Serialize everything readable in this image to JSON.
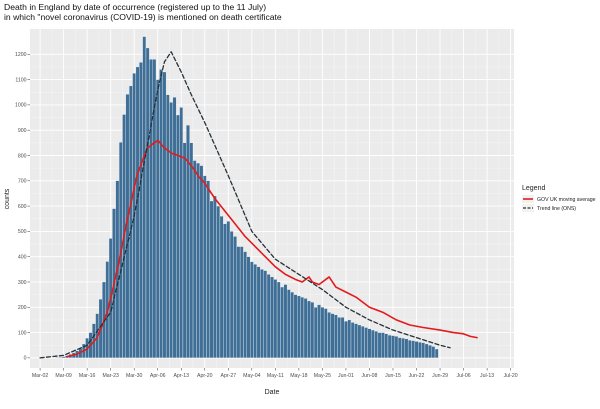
{
  "chart_data": {
    "type": "bar",
    "title": "Death in England by date of occurrence (registered up to the 11 July)",
    "subtitle": "in which \"novel coronavirus (COVID-19) is mentioned on death certificate",
    "xlabel": "Date",
    "ylabel": "counts",
    "x_tick_labels": [
      "Mar-02",
      "Mar-09",
      "Mar-16",
      "Mar-23",
      "Mar-30",
      "Apr-06",
      "Apr-13",
      "Apr-20",
      "Apr-27",
      "May-04",
      "May-11",
      "May-18",
      "May-25",
      "Jun-01",
      "Jun-08",
      "Jun-15",
      "Jun-22",
      "Jun-29",
      "Jul-06",
      "Jul-13",
      "Jul-20"
    ],
    "y_ticks": [
      0,
      100,
      200,
      300,
      400,
      500,
      600,
      700,
      800,
      900,
      1000,
      1100,
      1200
    ],
    "xlim": [
      "2020-02-28",
      "2020-07-21"
    ],
    "ylim": [
      -40,
      1300
    ],
    "grid": true,
    "legend_position": "right",
    "legend_title": "Legend",
    "bar_color": "#3f6f96",
    "bars": {
      "name": "Daily deaths",
      "start_date": "2020-03-06",
      "values": [
        1,
        2,
        3,
        5,
        9,
        14,
        20,
        28,
        38,
        55,
        78,
        100,
        135,
        175,
        232,
        300,
        381,
        472,
        590,
        700,
        852,
        962,
        1042,
        1075,
        1125,
        1150,
        1168,
        1270,
        1225,
        1180,
        1180,
        1100,
        1140,
        1130,
        1040,
        1010,
        1030,
        960,
        990,
        850,
        920,
        850,
        780,
        770,
        760,
        720,
        700,
        620,
        640,
        600,
        560,
        530,
        540,
        500,
        480,
        440,
        440,
        420,
        400,
        380,
        370,
        360,
        350,
        345,
        330,
        320,
        310,
        300,
        280,
        290,
        270,
        260,
        250,
        245,
        240,
        235,
        225,
        220,
        200,
        210,
        200,
        195,
        180,
        175,
        170,
        160,
        160,
        145,
        150,
        140,
        135,
        130,
        125,
        120,
        115,
        110,
        105,
        100,
        100,
        95,
        90,
        88,
        85,
        80,
        78,
        75,
        70,
        68,
        65,
        62,
        60,
        55,
        50,
        45,
        35
      ]
    },
    "series": [
      {
        "name": "GOV UK moving average",
        "type": "line",
        "color": "#e41a1c",
        "x": [
          "2020-03-10",
          "2020-03-13",
          "2020-03-16",
          "2020-03-19",
          "2020-03-22",
          "2020-03-25",
          "2020-03-28",
          "2020-03-31",
          "2020-04-03",
          "2020-04-06",
          "2020-04-08",
          "2020-04-10",
          "2020-04-12",
          "2020-04-14",
          "2020-04-16",
          "2020-04-18",
          "2020-04-20",
          "2020-04-23",
          "2020-04-26",
          "2020-04-29",
          "2020-05-02",
          "2020-05-05",
          "2020-05-08",
          "2020-05-11",
          "2020-05-14",
          "2020-05-17",
          "2020-05-19",
          "2020-05-21",
          "2020-05-22",
          "2020-05-24",
          "2020-05-27",
          "2020-05-29",
          "2020-06-01",
          "2020-06-04",
          "2020-06-08",
          "2020-06-12",
          "2020-06-16",
          "2020-06-20",
          "2020-06-24",
          "2020-06-29",
          "2020-07-03",
          "2020-07-06",
          "2020-07-08",
          "2020-07-10"
        ],
        "y": [
          5,
          15,
          35,
          80,
          180,
          350,
          550,
          730,
          830,
          860,
          830,
          810,
          800,
          790,
          760,
          720,
          690,
          630,
          580,
          530,
          480,
          440,
          400,
          360,
          330,
          310,
          300,
          320,
          300,
          290,
          320,
          280,
          260,
          240,
          200,
          180,
          150,
          130,
          120,
          110,
          100,
          95,
          85,
          80
        ]
      },
      {
        "name": "Trend line (ONS)",
        "type": "line",
        "dash": "dashed",
        "color": "#263238",
        "x": [
          "2020-03-02",
          "2020-03-09",
          "2020-03-16",
          "2020-03-23",
          "2020-03-30",
          "2020-04-06",
          "2020-04-08",
          "2020-04-10",
          "2020-04-13",
          "2020-04-16",
          "2020-04-20",
          "2020-04-27",
          "2020-05-04",
          "2020-05-11",
          "2020-05-18",
          "2020-05-25",
          "2020-06-01",
          "2020-06-08",
          "2020-06-15",
          "2020-06-22",
          "2020-06-29",
          "2020-07-02"
        ],
        "y": [
          0,
          10,
          50,
          180,
          560,
          1060,
          1170,
          1210,
          1130,
          1040,
          930,
          720,
          500,
          390,
          330,
          270,
          200,
          150,
          110,
          80,
          50,
          40
        ]
      }
    ]
  }
}
